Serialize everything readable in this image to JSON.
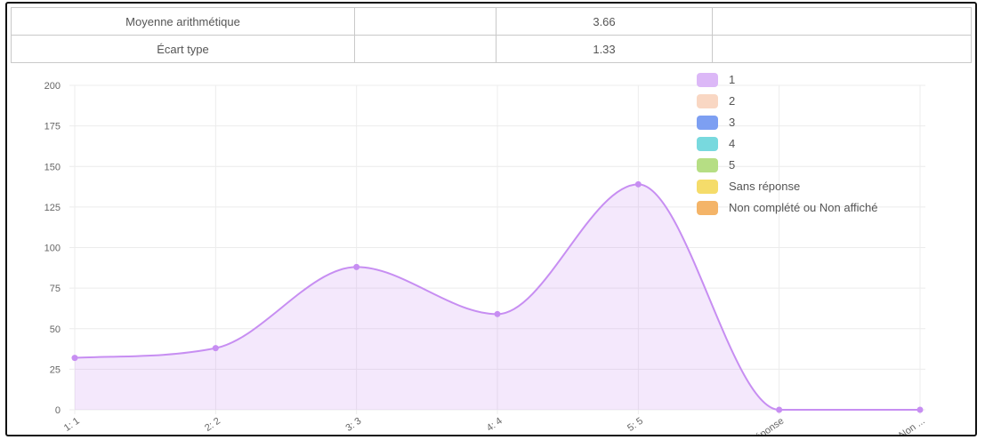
{
  "stats": {
    "rows": [
      {
        "label": "Moyenne arithmétique",
        "value": "3.66"
      },
      {
        "label": "Écart type",
        "value": "1.33"
      }
    ]
  },
  "chart_data": {
    "type": "area",
    "categories": [
      "1: 1",
      "2: 2",
      "3: 3",
      "4: 4",
      "5: 5",
      "Sans réponse",
      "Non complété ou Non ..."
    ],
    "tick_labels_visible": [
      "1: 1",
      "2: 2",
      "3: 3",
      "4: 4",
      "5: 5",
      "réponse",
      "ou Non ..."
    ],
    "series": [
      {
        "values": [
          32,
          38,
          88,
          59,
          139,
          0,
          0
        ],
        "color": "#c78ef2"
      }
    ],
    "ylim": [
      0,
      200
    ],
    "yticks": [
      0,
      25,
      50,
      75,
      100,
      125,
      150,
      175,
      200
    ],
    "grid": true,
    "legend": {
      "position": "top-right",
      "items": [
        {
          "label": "1",
          "color": "#dcb8f7"
        },
        {
          "label": "2",
          "color": "#f9d7c3"
        },
        {
          "label": "3",
          "color": "#7d9ff2"
        },
        {
          "label": "4",
          "color": "#78d9de"
        },
        {
          "label": "5",
          "color": "#b6de84"
        },
        {
          "label": "Sans réponse",
          "color": "#f5dc6a"
        },
        {
          "label": "Non complété ou Non affiché",
          "color": "#f4b468"
        }
      ]
    }
  }
}
